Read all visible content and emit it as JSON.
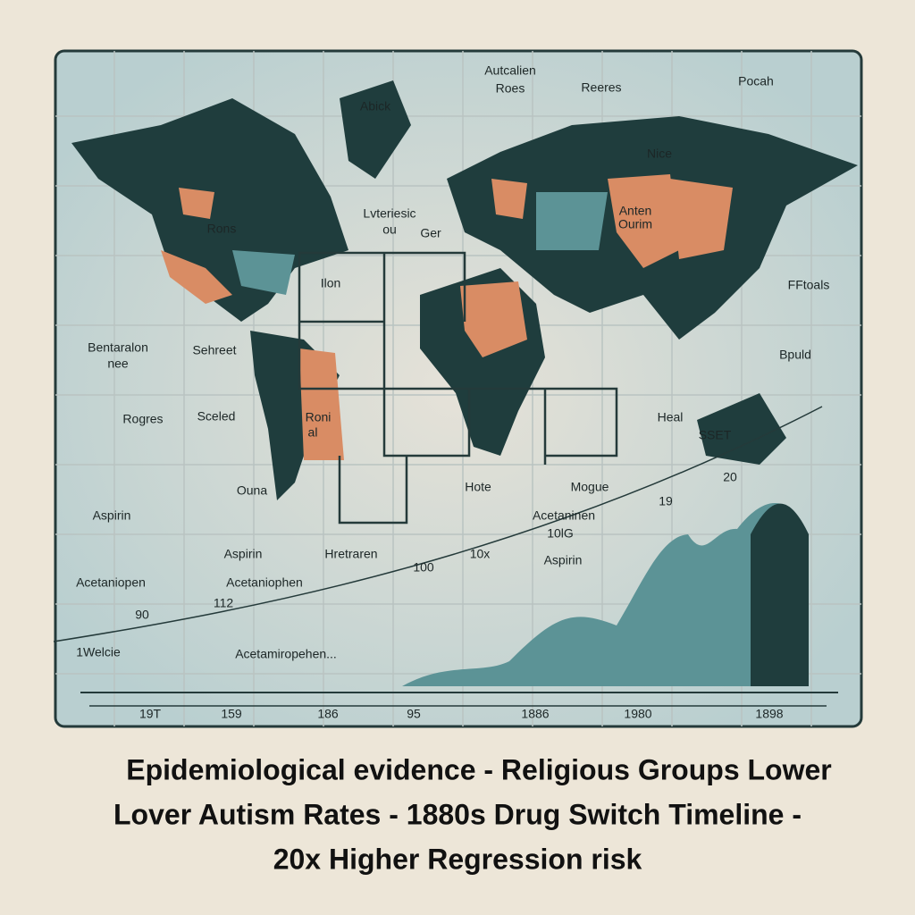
{
  "map_labels": [
    "Abick",
    "Autcalien",
    "Roes",
    "Reeres",
    "Pocah",
    "Nice",
    "Rons",
    "Lvteriesic",
    "ou",
    "Ger",
    "Anten",
    "Ourim",
    "Ilon",
    "FFtoals",
    "Bentaralon",
    "nee",
    "Sehreet",
    "Bpuld",
    "Rogres",
    "Sceled",
    "Roni",
    "al",
    "Heal",
    "SSET",
    "Hote",
    "Mogue",
    "20",
    "19",
    "Ouna",
    "Aspirin",
    "Acetaninen",
    "10lG",
    "Aspirin",
    "10x",
    "100",
    "Aspirin",
    "Hretraren",
    "Acetaniopen",
    "Acetaniophen",
    "90",
    "112",
    "1Welcie",
    "Acetamiropehen..."
  ],
  "timeline_labels": [
    "19T",
    "159",
    "186",
    "95",
    "1886",
    "1980",
    "1898"
  ],
  "caption": [
    "Epidemiological evidence - Religious Groups Lower",
    "Lover Autism Rates - 1880s Drug Switch Timeline -",
    "20x Higher Regression risk"
  ]
}
